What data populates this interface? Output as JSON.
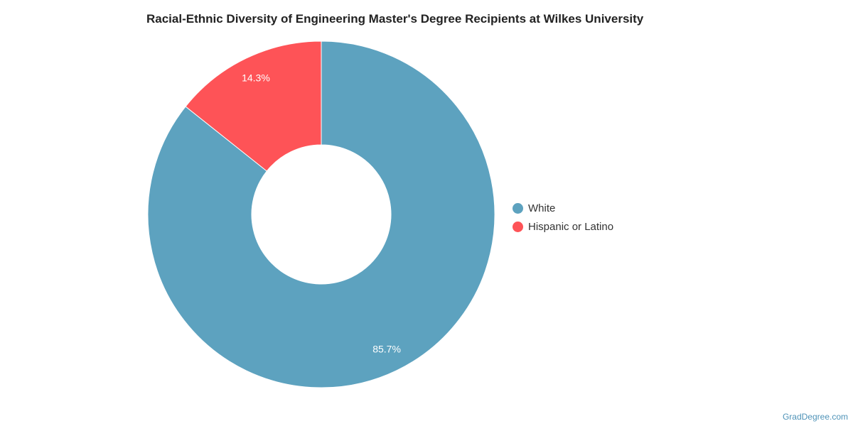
{
  "chart_data": {
    "type": "pie",
    "title": "Racial-Ethnic Diversity of Engineering Master's Degree Recipients at Wilkes University",
    "series": [
      {
        "slices": [
          {
            "label": "White",
            "value": 85.7,
            "value_label": "85.7%",
            "color": "#5da2bf"
          },
          {
            "label": "Hispanic or Latino",
            "value": 14.3,
            "value_label": "14.3%",
            "color": "#fe5357"
          }
        ]
      }
    ],
    "legend_position": "right",
    "donut": true
  },
  "credit": "GradDegree.com"
}
